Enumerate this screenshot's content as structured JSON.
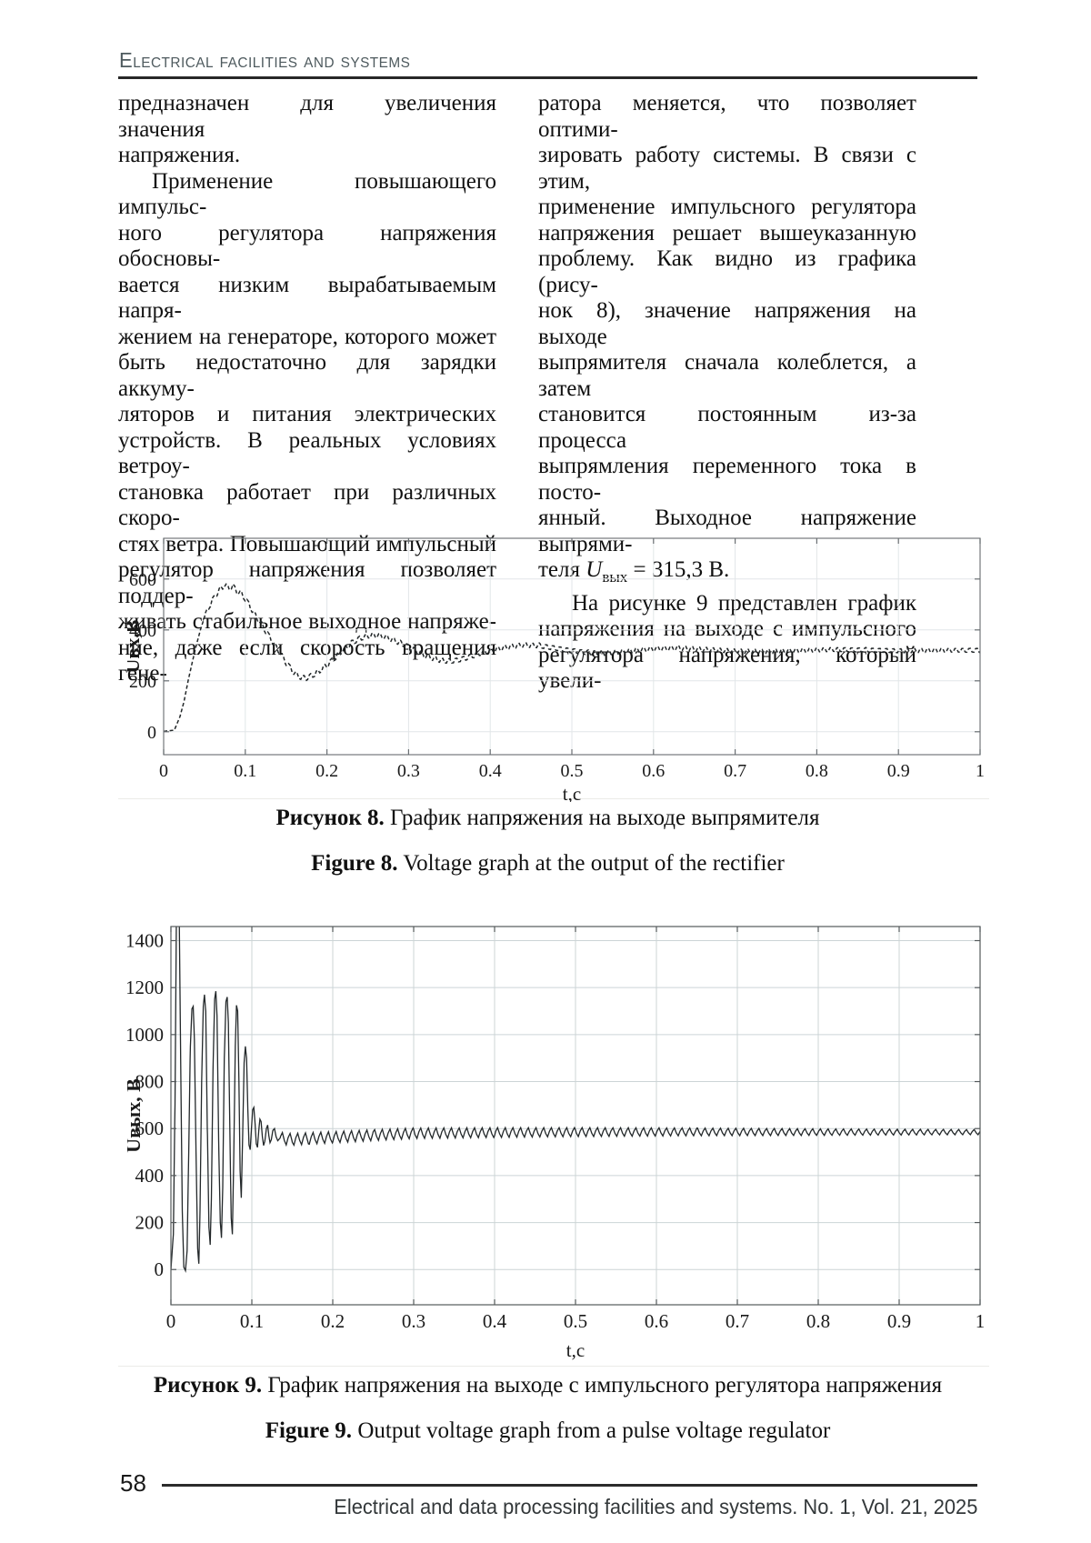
{
  "header": {
    "title": "Electrical facilities and systems"
  },
  "body": {
    "left_column": {
      "lines": [
        {
          "t": "предназначен для увеличения значения"
        },
        {
          "t": "напряжения.",
          "justify": false
        },
        {
          "t": "Применение повышающего импульс-",
          "indent": true
        },
        {
          "t": "ного регулятора напряжения обосновы-"
        },
        {
          "t": "вается низким вырабатываемым напря-"
        },
        {
          "t": "жением на генераторе, которого может"
        },
        {
          "t": "быть недостаточно для зарядки аккуму-"
        },
        {
          "t": "ляторов и питания электрических"
        },
        {
          "t": "устройств. В реальных условиях ветроу-"
        },
        {
          "t": "становка работает при различных скоро-"
        },
        {
          "t": "стях ветра. Повышающий импульсный"
        },
        {
          "t": "регулятор напряжения позволяет поддер-"
        },
        {
          "t": "живать стабильное выходное напряже-"
        },
        {
          "t": "ние, даже если скорость вращения гене-"
        }
      ]
    },
    "right_column": {
      "lines": [
        {
          "t": "ратора меняется, что позволяет оптими-"
        },
        {
          "t": "зировать работу системы. В связи с этим,"
        },
        {
          "t": "применение импульсного регулятора"
        },
        {
          "t": "напряжения решает вышеуказанную"
        },
        {
          "t": "проблему. Как видно из графика (рису-"
        },
        {
          "t": "нок 8), значение напряжения на выходе"
        },
        {
          "t": "выпрямителя сначала колеблется, а затем"
        },
        {
          "t": "становится постоянным из-за процесса"
        },
        {
          "t": "выпрямления переменного тока в посто-"
        },
        {
          "t": "янный. Выходное напряжение выпрями-"
        },
        {
          "justify": false,
          "parts": [
            {
              "t": "теля "
            },
            {
              "t": "U",
              "s": "i"
            },
            {
              "t": "вых",
              "s": "sub"
            },
            {
              "t": " = 315,3 В."
            }
          ]
        },
        {
          "t": "На рисунке 9 представлен график",
          "indent": true
        },
        {
          "t": "напряжения на выходе с импульсного"
        },
        {
          "t": "регулятора напряжения, который увели-"
        }
      ]
    }
  },
  "figures": {
    "fig8": {
      "caption_ru_bold": "Рисунок 8.",
      "caption_ru_text": " График напряжения на выходе выпрямителя",
      "caption_en_bold": "Figure 8.",
      "caption_en_text": " Voltage graph at the output of the rectifier"
    },
    "fig9": {
      "caption_ru_bold": "Рисунок 9.",
      "caption_ru_text": " График напряжения на выходе с импульсного регулятора напряжения",
      "caption_en_bold": "Figure 9.",
      "caption_en_text": " Output voltage graph from a pulse voltage regulator"
    }
  },
  "footer": {
    "page_number": "58",
    "journal_line": "Electrical and data processing facilities and systems. No. 1, Vol. 21, 2025"
  },
  "chart_data": [
    {
      "id": "figure8",
      "type": "line",
      "title": "Рисунок 8. График напряжения на выходе выпрямителя",
      "xlabel": "t,c",
      "ylabel": "Uвх,В",
      "xlim": [
        0,
        1
      ],
      "ylim": [
        -90,
        760
      ],
      "xticks": [
        0,
        0.1,
        0.2,
        0.3,
        0.4,
        0.5,
        0.6,
        0.7,
        0.8,
        0.9,
        1
      ],
      "yticks": [
        0,
        200,
        400,
        600
      ],
      "grid": true,
      "line_style": "dashed",
      "settled_value_volts": 315.3,
      "keypoints": [
        [
          0,
          2
        ],
        [
          0.013,
          6
        ],
        [
          0.02,
          60
        ],
        [
          0.025,
          120
        ],
        [
          0.03,
          200
        ],
        [
          0.035,
          272
        ],
        [
          0.04,
          340
        ],
        [
          0.045,
          400
        ],
        [
          0.05,
          450
        ],
        [
          0.055,
          488
        ],
        [
          0.06,
          516
        ],
        [
          0.065,
          544
        ],
        [
          0.07,
          562
        ],
        [
          0.075,
          576
        ],
        [
          0.08,
          564
        ],
        [
          0.085,
          572
        ],
        [
          0.09,
          552
        ],
        [
          0.095,
          542
        ],
        [
          0.1,
          522
        ],
        [
          0.105,
          498
        ],
        [
          0.11,
          468
        ],
        [
          0.115,
          445
        ],
        [
          0.12,
          420
        ],
        [
          0.125,
          396
        ],
        [
          0.13,
          372
        ],
        [
          0.135,
          347
        ],
        [
          0.14,
          322
        ],
        [
          0.145,
          297
        ],
        [
          0.15,
          272
        ],
        [
          0.155,
          252
        ],
        [
          0.16,
          232
        ],
        [
          0.165,
          218
        ],
        [
          0.17,
          212
        ],
        [
          0.175,
          213
        ],
        [
          0.18,
          217
        ],
        [
          0.19,
          236
        ],
        [
          0.2,
          262
        ],
        [
          0.21,
          292
        ],
        [
          0.22,
          322
        ],
        [
          0.23,
          348
        ],
        [
          0.24,
          366
        ],
        [
          0.25,
          376
        ],
        [
          0.26,
          380
        ],
        [
          0.27,
          374
        ],
        [
          0.28,
          362
        ],
        [
          0.29,
          348
        ],
        [
          0.3,
          334
        ],
        [
          0.31,
          316
        ],
        [
          0.32,
          300
        ],
        [
          0.33,
          288
        ],
        [
          0.34,
          280
        ],
        [
          0.35,
          277
        ],
        [
          0.36,
          281
        ],
        [
          0.37,
          290
        ],
        [
          0.38,
          301
        ],
        [
          0.39,
          310
        ],
        [
          0.4,
          318
        ],
        [
          0.42,
          332
        ],
        [
          0.44,
          341
        ],
        [
          0.46,
          338
        ],
        [
          0.48,
          328
        ],
        [
          0.5,
          318
        ],
        [
          0.52,
          311
        ],
        [
          0.54,
          309
        ],
        [
          0.56,
          313
        ],
        [
          0.58,
          320
        ],
        [
          0.6,
          326
        ],
        [
          0.63,
          329
        ],
        [
          0.66,
          324
        ],
        [
          0.7,
          317
        ],
        [
          0.74,
          315
        ],
        [
          0.78,
          319
        ],
        [
          0.82,
          323
        ],
        [
          0.86,
          321
        ],
        [
          0.9,
          318
        ],
        [
          0.95,
          320
        ],
        [
          1,
          320
        ]
      ],
      "ripple": {
        "from": 0.05,
        "to": 1,
        "amp_from": 12,
        "amp_to": 10,
        "period": 0.0085
      }
    },
    {
      "id": "figure9",
      "type": "line",
      "title": "Рисунок 9. График напряжения на выходе с импульсного регулятора напряжения",
      "xlabel": "t,c",
      "ylabel": "Uвых, В",
      "xlim": [
        0,
        1
      ],
      "ylim": [
        -150,
        1460
      ],
      "xticks": [
        0,
        0.1,
        0.2,
        0.3,
        0.4,
        0.5,
        0.6,
        0.7,
        0.8,
        0.9,
        1
      ],
      "yticks": [
        0,
        200,
        400,
        600,
        800,
        1000,
        1200,
        1400
      ],
      "grid": true,
      "line_style": "solid",
      "settled_value_volts": 585,
      "keypoints": [
        [
          0,
          0
        ],
        [
          0.003,
          150
        ],
        [
          0.005,
          700
        ],
        [
          0.007,
          1600
        ],
        [
          0.01,
          1600
        ],
        [
          0.012,
          900
        ],
        [
          0.014,
          250
        ],
        [
          0.016,
          10
        ],
        [
          0.018,
          -5
        ],
        [
          0.02,
          80
        ],
        [
          0.022,
          500
        ],
        [
          0.024,
          950
        ],
        [
          0.026,
          1110
        ],
        [
          0.0275,
          1120
        ],
        [
          0.029,
          980
        ],
        [
          0.031,
          500
        ],
        [
          0.033,
          90
        ],
        [
          0.0345,
          25
        ],
        [
          0.036,
          250
        ],
        [
          0.038,
          800
        ],
        [
          0.04,
          1120
        ],
        [
          0.0415,
          1170
        ],
        [
          0.043,
          1100
        ],
        [
          0.045,
          600
        ],
        [
          0.047,
          180
        ],
        [
          0.0485,
          105
        ],
        [
          0.05,
          300
        ],
        [
          0.052,
          850
        ],
        [
          0.054,
          1150
        ],
        [
          0.0555,
          1185
        ],
        [
          0.057,
          1080
        ],
        [
          0.059,
          550
        ],
        [
          0.061,
          200
        ],
        [
          0.0625,
          135
        ],
        [
          0.064,
          350
        ],
        [
          0.066,
          900
        ],
        [
          0.068,
          1140
        ],
        [
          0.0695,
          1160
        ],
        [
          0.071,
          1050
        ],
        [
          0.073,
          550
        ],
        [
          0.0745,
          220
        ],
        [
          0.076,
          150
        ],
        [
          0.0775,
          450
        ],
        [
          0.0795,
          950
        ],
        [
          0.081,
          1125
        ],
        [
          0.0825,
          1100
        ],
        [
          0.084,
          800
        ],
        [
          0.0855,
          420
        ],
        [
          0.087,
          305
        ],
        [
          0.0885,
          550
        ],
        [
          0.0905,
          880
        ],
        [
          0.092,
          950
        ],
        [
          0.0935,
          900
        ],
        [
          0.095,
          680
        ],
        [
          0.0965,
          530
        ],
        [
          0.098,
          510
        ],
        [
          0.0995,
          600
        ],
        [
          0.101,
          680
        ],
        [
          0.1025,
          690
        ],
        [
          0.104,
          620
        ],
        [
          0.1055,
          535
        ],
        [
          0.107,
          520
        ],
        [
          0.1085,
          590
        ],
        [
          0.11,
          640
        ],
        [
          0.1115,
          630
        ],
        [
          0.113,
          565
        ],
        [
          0.1145,
          528
        ],
        [
          0.116,
          545
        ],
        [
          0.118,
          600
        ],
        [
          0.1195,
          615
        ],
        [
          0.121,
          570
        ],
        [
          0.1225,
          540
        ],
        [
          0.124,
          552
        ],
        [
          0.126,
          592
        ],
        [
          0.128,
          600
        ],
        [
          0.13,
          565
        ],
        [
          0.132,
          548
        ],
        [
          0.135,
          560
        ],
        [
          0.14,
          556
        ],
        [
          0.15,
          554
        ],
        [
          0.17,
          558
        ],
        [
          0.2,
          563
        ],
        [
          0.25,
          572
        ],
        [
          0.3,
          580
        ],
        [
          0.4,
          583
        ],
        [
          0.5,
          585
        ],
        [
          0.65,
          586
        ],
        [
          0.8,
          585
        ],
        [
          1,
          585
        ]
      ],
      "ripple": {
        "from": 0.135,
        "to": 1,
        "amp_from": 26,
        "amp_to": 11,
        "period": 0.0095
      }
    }
  ]
}
